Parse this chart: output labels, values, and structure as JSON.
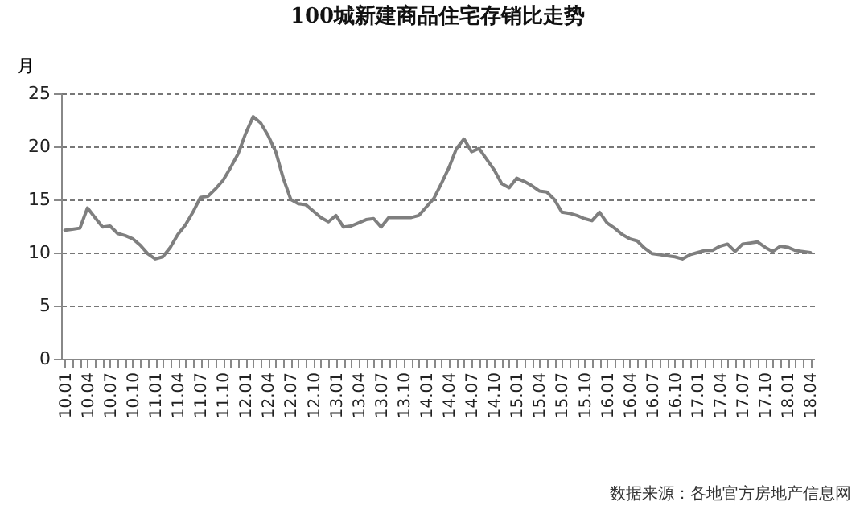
{
  "chart_data": {
    "type": "line",
    "title": "100城新建商品住宅存销比走势",
    "ylabel": "月",
    "annotations": [
      "数据来源：各地官方房地产信息网"
    ],
    "categories": [
      "10.01",
      null,
      null,
      "10.04",
      null,
      null,
      "10.07",
      null,
      null,
      "10.10",
      null,
      null,
      "11.01",
      null,
      null,
      "11.04",
      null,
      null,
      "11.07",
      null,
      null,
      "11.10",
      null,
      null,
      "12.01",
      null,
      null,
      "12.04",
      null,
      null,
      "12.07",
      null,
      null,
      "12.10",
      null,
      null,
      "13.01",
      null,
      null,
      "13.04",
      null,
      null,
      "13.07",
      null,
      null,
      "13.10",
      null,
      null,
      "14.01",
      null,
      null,
      "14.04",
      null,
      null,
      "14.07",
      null,
      null,
      "14.10",
      null,
      null,
      "15.01",
      null,
      null,
      "15.04",
      null,
      null,
      "15.07",
      null,
      null,
      "15.10",
      null,
      null,
      "16.01",
      null,
      null,
      "16.04",
      null,
      null,
      "16.07",
      null,
      null,
      "16.10",
      null,
      null,
      "17.01",
      null,
      null,
      "17.04",
      null,
      null,
      "17.07",
      null,
      null,
      "17.10",
      null,
      null,
      "18.01",
      null,
      null,
      "18.04"
    ],
    "series": [
      {
        "color": "#7f7f7f",
        "values": [
          12.1,
          12.2,
          12.3,
          14.2,
          13.3,
          12.4,
          12.5,
          11.8,
          11.6,
          11.3,
          10.7,
          9.9,
          9.4,
          9.6,
          10.5,
          11.7,
          12.6,
          13.8,
          15.2,
          15.3,
          16.0,
          16.8,
          18.0,
          19.3,
          21.2,
          22.8,
          22.2,
          21.0,
          19.5,
          17.0,
          15.0,
          14.6,
          14.5,
          13.9,
          13.3,
          12.9,
          13.5,
          12.4,
          12.5,
          12.8,
          13.1,
          13.2,
          12.4,
          13.3,
          13.3,
          13.3,
          13.3,
          13.5,
          14.3,
          15.1,
          16.5,
          18.0,
          19.8,
          20.7,
          19.5,
          19.8,
          18.8,
          17.8,
          16.5,
          16.1,
          17.0,
          16.7,
          16.3,
          15.8,
          15.7,
          15.0,
          13.8,
          13.7,
          13.5,
          13.2,
          13.0,
          13.8,
          12.8,
          12.3,
          11.7,
          11.3,
          11.1,
          10.4,
          9.9,
          9.8,
          9.7,
          9.6,
          9.4,
          9.8,
          10.0,
          10.2,
          10.2,
          10.6,
          10.8,
          10.1,
          10.8,
          10.9,
          11.0,
          10.5,
          10.1,
          10.6,
          10.5,
          10.2,
          10.1,
          10.0
        ]
      }
    ],
    "ylim": [
      0,
      25
    ],
    "yticks": [
      0,
      5,
      10,
      15,
      20,
      25
    ],
    "grid": "y",
    "marker": "none",
    "line_style": "solid"
  }
}
